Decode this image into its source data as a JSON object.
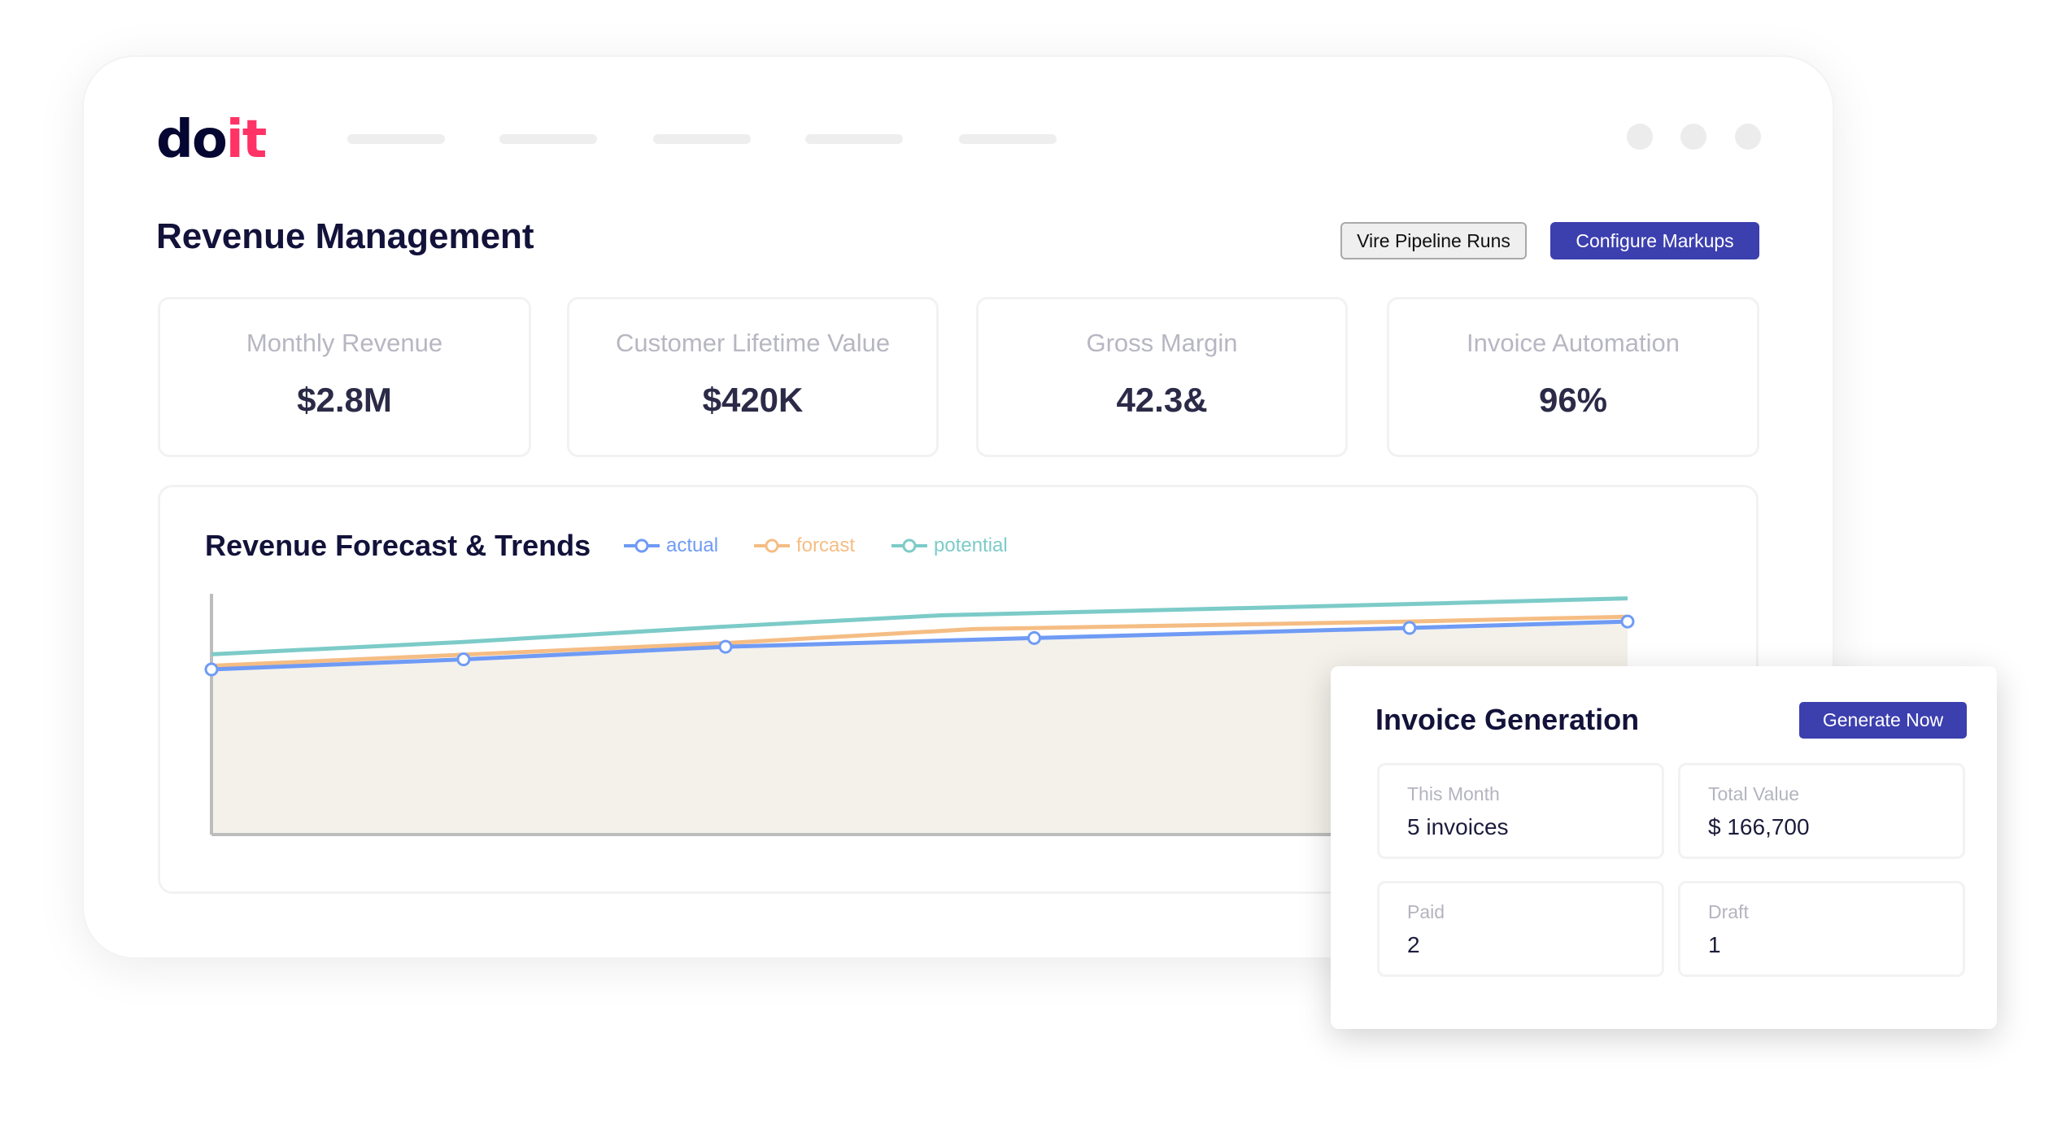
{
  "brand": {
    "logo_text_dark": "do",
    "logo_text_accent": "it",
    "accent": "#ff3366",
    "dark": "#060632"
  },
  "nav": {
    "placeholder_count": 5,
    "window_dots": 3
  },
  "header": {
    "title": "Revenue Management",
    "secondary_button": "Vire Pipeline Runs",
    "primary_button": "Configure Markups",
    "primary_color": "#3c3fae"
  },
  "stats": [
    {
      "label": "Monthly Revenue",
      "value": "$2.8M"
    },
    {
      "label": "Customer Lifetime Value",
      "value": "$420K"
    },
    {
      "label": "Gross Margin",
      "value": "42.3&"
    },
    {
      "label": "Invoice Automation",
      "value": "96%"
    }
  ],
  "chart_data": {
    "type": "line",
    "title": "Revenue Forecast & Trends",
    "ylim": [
      0,
      105
    ],
    "xlim": [
      0,
      100
    ],
    "grid": false,
    "legend": "top",
    "series": [
      {
        "name": "actual",
        "color": "#6f9bf5",
        "x": [
          0,
          17.8,
          36.3,
          58.1,
          84.6,
          100
        ],
        "values": [
          72,
          76.4,
          81.9,
          85.7,
          90.1,
          92.9
        ],
        "markers": true,
        "fill": "#f4f1eb"
      },
      {
        "name": "forcast",
        "color": "#f5bd84",
        "x": [
          0,
          36.3,
          53.8,
          84.6,
          100
        ],
        "values": [
          73.6,
          83.5,
          89.6,
          92.9,
          95
        ]
      },
      {
        "name": "potential",
        "color": "#7ccbc8",
        "x": [
          0,
          17.8,
          36.3,
          51.5,
          84.6,
          100
        ],
        "values": [
          78.6,
          84,
          90.7,
          95.6,
          100.5,
          103
        ]
      }
    ]
  },
  "invoice": {
    "title": "Invoice Generation",
    "button": "Generate Now",
    "cards": [
      {
        "label": "This Month",
        "value": "5 invoices"
      },
      {
        "label": "Total Value",
        "value": "$ 166,700"
      },
      {
        "label": "Paid",
        "value": "2"
      },
      {
        "label": "Draft",
        "value": "1"
      }
    ]
  }
}
